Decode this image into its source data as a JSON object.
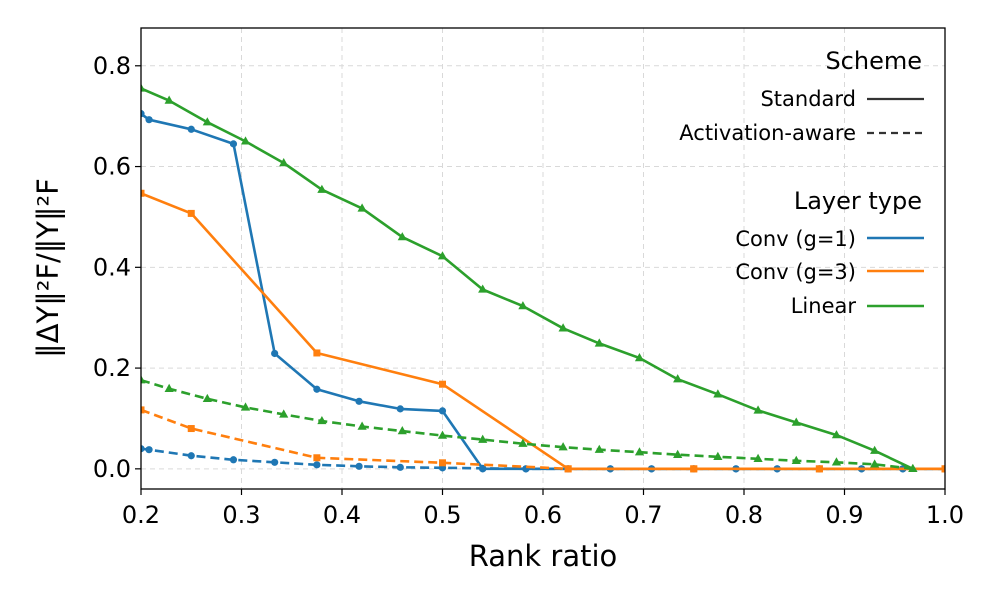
{
  "chart_data": {
    "type": "line",
    "xlabel": "Rank ratio",
    "ylabel": "‖ΔY‖²F/‖Y‖²F",
    "xlim": [
      0.2,
      1.0
    ],
    "ylim": [
      -0.04,
      0.875
    ],
    "xticks": [
      "0.2",
      "0.3",
      "0.4",
      "0.5",
      "0.6",
      "0.7",
      "0.8",
      "0.9",
      "1.0"
    ],
    "yticks": [
      "0.0",
      "0.2",
      "0.4",
      "0.6",
      "0.8"
    ],
    "grid": true,
    "legend": {
      "placement": "top-right",
      "scheme_title": "Scheme",
      "scheme_entries": [
        {
          "label": "Standard",
          "style": "solid"
        },
        {
          "label": "Activation-aware",
          "style": "dashed"
        }
      ],
      "layer_title": "Layer type",
      "layer_entries": [
        {
          "label": "Conv (g=1)",
          "color": "#1f77b4"
        },
        {
          "label": "Conv (g=3)",
          "color": "#ff7f0e"
        },
        {
          "label": "Linear",
          "color": "#2ca02c"
        }
      ]
    },
    "series": [
      {
        "name": "Conv (g=1) Standard",
        "color": "#1f77b4",
        "style": "solid",
        "marker": "circle",
        "x": [
          0.2,
          0.208,
          0.25,
          0.292,
          0.333,
          0.375,
          0.417,
          0.458,
          0.5,
          0.54,
          0.583,
          0.625,
          0.667,
          0.708,
          0.75,
          0.792,
          0.833,
          0.875,
          0.917,
          0.958,
          1.0
        ],
        "y": [
          0.705,
          0.693,
          0.674,
          0.645,
          0.229,
          0.158,
          0.134,
          0.119,
          0.115,
          0.0,
          0.0,
          0.0,
          0.0,
          0.0,
          0.0,
          0.0,
          0.0,
          0.0,
          0.0,
          0.0,
          0.0
        ]
      },
      {
        "name": "Conv (g=1) Activation-aware",
        "color": "#1f77b4",
        "style": "dashed",
        "marker": "circle",
        "x": [
          0.2,
          0.208,
          0.25,
          0.292,
          0.333,
          0.375,
          0.417,
          0.458,
          0.5,
          0.54,
          0.583,
          0.625,
          0.667,
          0.708,
          0.75,
          0.792,
          0.833,
          0.875,
          0.917,
          0.958,
          1.0
        ],
        "y": [
          0.04,
          0.038,
          0.026,
          0.018,
          0.013,
          0.008,
          0.005,
          0.003,
          0.002,
          0.001,
          0.0,
          0.0,
          0.0,
          0.0,
          0.0,
          0.0,
          0.0,
          0.0,
          0.0,
          0.0,
          0.0
        ]
      },
      {
        "name": "Conv (g=3) Standard",
        "color": "#ff7f0e",
        "style": "solid",
        "marker": "square",
        "x": [
          0.2,
          0.25,
          0.375,
          0.5,
          0.625,
          0.75,
          0.875,
          1.0
        ],
        "y": [
          0.547,
          0.507,
          0.23,
          0.168,
          0.0,
          0.0,
          0.0,
          0.0
        ]
      },
      {
        "name": "Conv (g=3) Activation-aware",
        "color": "#ff7f0e",
        "style": "dashed",
        "marker": "square",
        "x": [
          0.2,
          0.25,
          0.375,
          0.5,
          0.625,
          0.75,
          0.875,
          1.0
        ],
        "y": [
          0.117,
          0.08,
          0.022,
          0.012,
          0.0,
          0.0,
          0.0,
          0.0
        ]
      },
      {
        "name": "Linear Standard",
        "color": "#2ca02c",
        "style": "solid",
        "marker": "triangle",
        "x": [
          0.2,
          0.228,
          0.266,
          0.304,
          0.342,
          0.38,
          0.42,
          0.46,
          0.5,
          0.54,
          0.58,
          0.62,
          0.656,
          0.696,
          0.734,
          0.774,
          0.814,
          0.852,
          0.892,
          0.93,
          0.968
        ],
        "y": [
          0.755,
          0.731,
          0.688,
          0.65,
          0.607,
          0.554,
          0.517,
          0.46,
          0.422,
          0.356,
          0.323,
          0.279,
          0.249,
          0.22,
          0.178,
          0.148,
          0.116,
          0.092,
          0.067,
          0.036,
          0.0
        ]
      },
      {
        "name": "Linear Activation-aware",
        "color": "#2ca02c",
        "style": "dashed",
        "marker": "triangle",
        "x": [
          0.2,
          0.228,
          0.266,
          0.304,
          0.342,
          0.38,
          0.42,
          0.46,
          0.5,
          0.54,
          0.58,
          0.62,
          0.656,
          0.696,
          0.734,
          0.774,
          0.814,
          0.852,
          0.892,
          0.93,
          0.968
        ],
        "y": [
          0.176,
          0.159,
          0.139,
          0.122,
          0.108,
          0.095,
          0.084,
          0.075,
          0.066,
          0.058,
          0.05,
          0.043,
          0.038,
          0.033,
          0.028,
          0.024,
          0.02,
          0.016,
          0.013,
          0.009,
          0.0
        ]
      }
    ]
  }
}
